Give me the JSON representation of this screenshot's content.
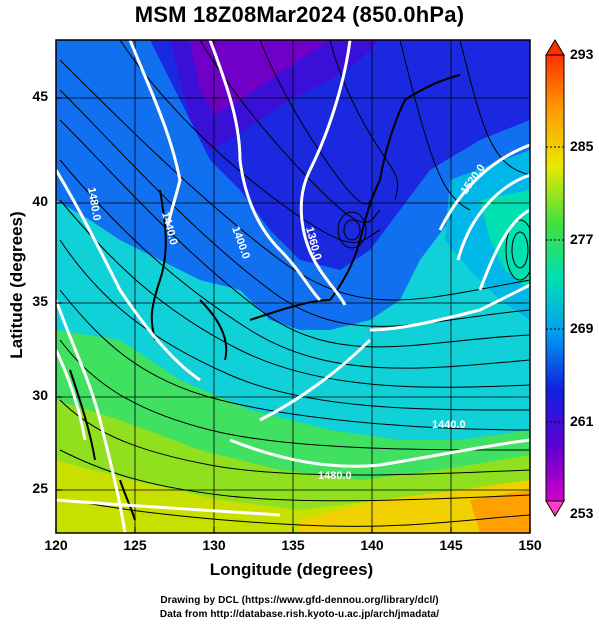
{
  "title": "MSM 18Z08Mar2024 (850.0hPa)",
  "axes": {
    "xlabel": "Longitude (degrees)",
    "ylabel": "Latitude  (degrees)",
    "x_ticks": [
      "120",
      "125",
      "130",
      "135",
      "140",
      "145",
      "150"
    ],
    "y_ticks": [
      "25",
      "30",
      "35",
      "40",
      "45"
    ]
  },
  "colorbar": {
    "labels": [
      "293",
      "285",
      "277",
      "269",
      "261",
      "253"
    ],
    "range": [
      253,
      293
    ],
    "colors": [
      "#c800c8",
      "#5a00d6",
      "#1010e0",
      "#0060ff",
      "#00b8e8",
      "#00e0a0",
      "#40e040",
      "#a8e800",
      "#f0e000",
      "#ff9000",
      "#ff2000"
    ]
  },
  "contour_labels": [
    "1400.0",
    "1440.0",
    "1480.0",
    "1360.0",
    "1520.0",
    "1480.0",
    "1440.0",
    "1400.0",
    "1440.0",
    "1480.0"
  ],
  "credits": {
    "line1": "Drawing by DCL (https://www.gfd-dennou.org/library/dcl/)",
    "line2": "Data from http://database.rish.kyoto-u.ac.jp/arch/jmadata/"
  },
  "chart_data": {
    "type": "heatmap",
    "title": "MSM 18Z08Mar2024 (850.0hPa)",
    "xlabel": "Longitude (degrees)",
    "ylabel": "Latitude  (degrees)",
    "xlim": [
      120,
      150
    ],
    "ylim": [
      22.4,
      47.6
    ],
    "colorbar_range": [
      253,
      293
    ],
    "overlays": [
      "streamlines",
      "geopotential height contours",
      "coastlines",
      "lat/lon grid"
    ],
    "contour_values": [
      1360,
      1400,
      1440,
      1480,
      1520
    ]
  }
}
